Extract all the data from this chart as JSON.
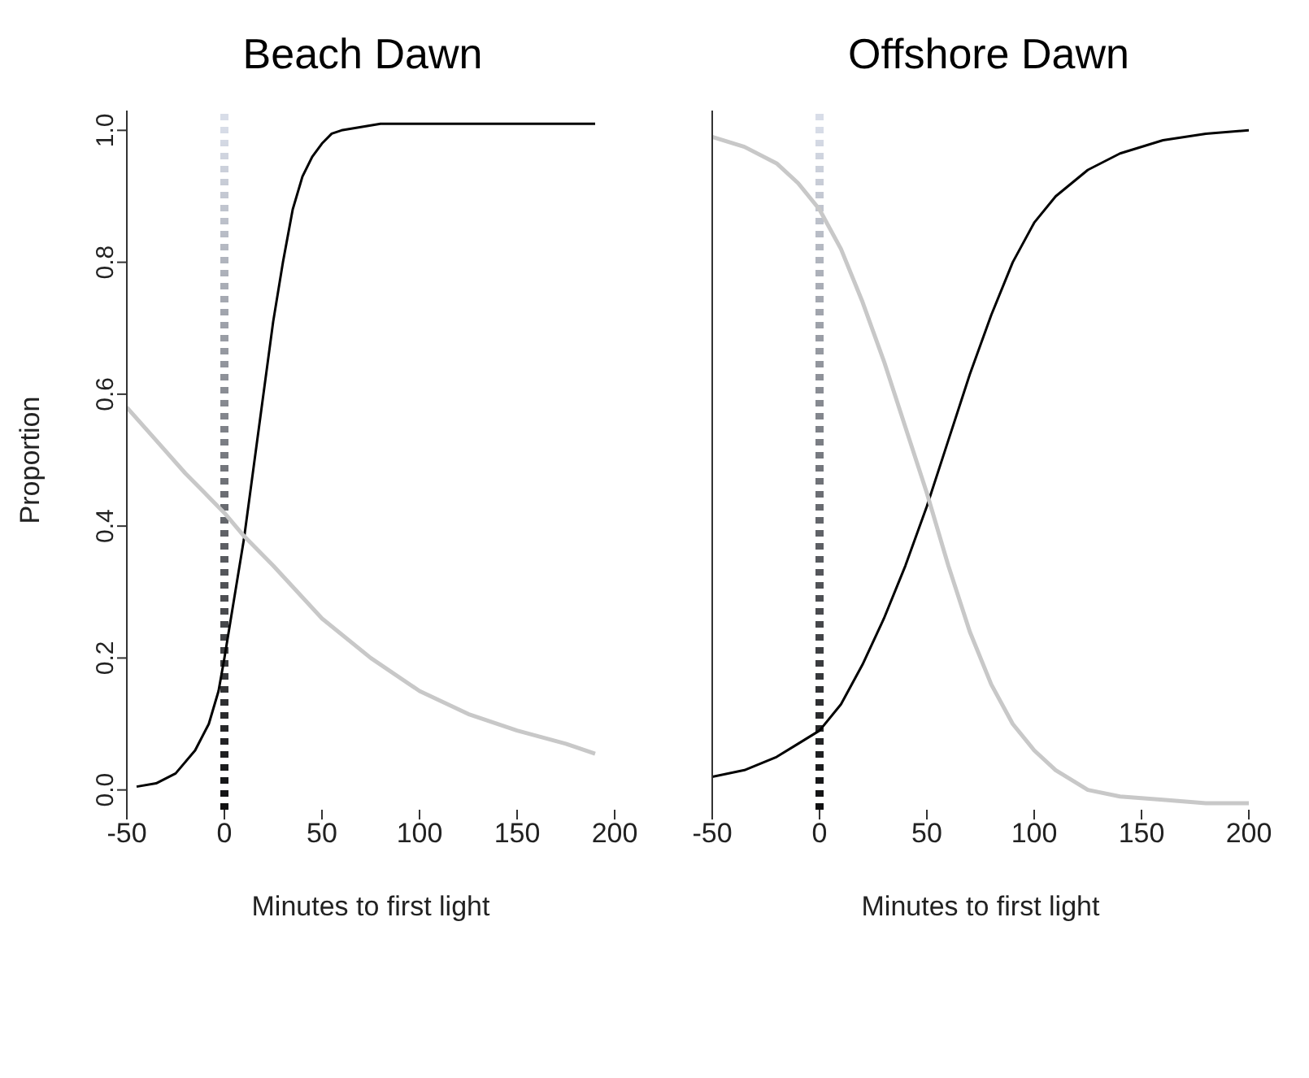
{
  "chart_data": [
    {
      "type": "line",
      "title": "Beach Dawn",
      "xlabel": "Minutes to first light",
      "ylabel": "Proportion",
      "xlim": [
        -50,
        200
      ],
      "xticks": [
        -50,
        0,
        50,
        100,
        150,
        200
      ],
      "ylim": [
        -0.03,
        1.03
      ],
      "yticks": [
        {
          "value": 0,
          "label": "0.0"
        },
        0.2,
        0.4,
        0.6,
        0.8,
        {
          "value": 1,
          "label": "1.0"
        }
      ],
      "grid": false,
      "marker": "none",
      "ref_lines": [
        {
          "axis": "x",
          "value": 0,
          "line_style": "dotted"
        }
      ],
      "series": [
        {
          "color": "#000000",
          "x": [
            -45,
            -35,
            -25,
            -15,
            -8,
            -3,
            0,
            5,
            10,
            15,
            20,
            25,
            30,
            35,
            40,
            45,
            50,
            55,
            60,
            70,
            80,
            100,
            150,
            190
          ],
          "values": [
            0.005,
            0.01,
            0.025,
            0.06,
            0.1,
            0.15,
            0.2,
            0.29,
            0.38,
            0.49,
            0.6,
            0.71,
            0.8,
            0.88,
            0.93,
            0.96,
            0.98,
            0.995,
            1.0,
            1.005,
            1.01,
            1.01,
            1.01,
            1.01
          ]
        },
        {
          "color": "#c8c8c8",
          "x": [
            -50,
            -35,
            -20,
            -10,
            0,
            10,
            25,
            50,
            75,
            100,
            125,
            150,
            175,
            190
          ],
          "values": [
            0.58,
            0.53,
            0.48,
            0.45,
            0.42,
            0.385,
            0.34,
            0.26,
            0.2,
            0.15,
            0.115,
            0.09,
            0.07,
            0.055
          ]
        }
      ]
    },
    {
      "type": "line",
      "title": "Offshore Dawn",
      "xlabel": "Minutes to first light",
      "xlim": [
        -50,
        200
      ],
      "xticks": [
        -50,
        0,
        50,
        100,
        150,
        200
      ],
      "ylim": [
        -0.03,
        1.03
      ],
      "yticks": [
        0,
        0.2,
        0.4,
        0.6,
        0.8,
        1
      ],
      "tick_labels": "x",
      "grid": false,
      "marker": "none",
      "ref_lines": [
        {
          "axis": "x",
          "value": 0,
          "line_style": "dotted"
        }
      ],
      "series": [
        {
          "color": "#000000",
          "x": [
            -50,
            -35,
            -20,
            -10,
            0,
            10,
            20,
            30,
            40,
            50,
            60,
            70,
            80,
            90,
            100,
            110,
            125,
            140,
            160,
            180,
            200
          ],
          "values": [
            0.02,
            0.03,
            0.05,
            0.07,
            0.09,
            0.13,
            0.19,
            0.26,
            0.34,
            0.43,
            0.53,
            0.63,
            0.72,
            0.8,
            0.86,
            0.9,
            0.94,
            0.965,
            0.985,
            0.995,
            1.0
          ]
        },
        {
          "color": "#c8c8c8",
          "x": [
            -50,
            -35,
            -20,
            -10,
            0,
            10,
            20,
            30,
            40,
            50,
            60,
            70,
            80,
            90,
            100,
            110,
            125,
            140,
            160,
            180,
            200
          ],
          "values": [
            0.99,
            0.975,
            0.95,
            0.92,
            0.88,
            0.82,
            0.74,
            0.65,
            0.55,
            0.45,
            0.34,
            0.24,
            0.16,
            0.1,
            0.06,
            0.03,
            0.0,
            -0.01,
            -0.015,
            -0.02,
            -0.02
          ]
        }
      ]
    }
  ]
}
